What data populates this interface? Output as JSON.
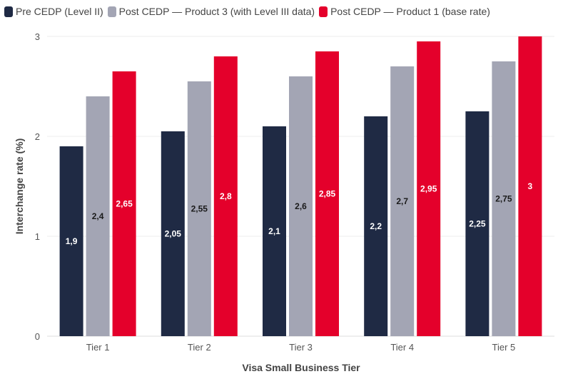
{
  "chart_data": {
    "type": "bar",
    "categories": [
      "Tier 1",
      "Tier 2",
      "Tier 3",
      "Tier 4",
      "Tier 5"
    ],
    "series": [
      {
        "name": "Pre CEDP (Level II)",
        "color": "#1f2a44",
        "label_color": "#ffffff",
        "values": [
          1.9,
          2.05,
          2.1,
          2.2,
          2.25
        ],
        "labels": [
          "1,9",
          "2,05",
          "2,1",
          "2,2",
          "2,25"
        ]
      },
      {
        "name": "Post CEDP — Product 3 (with Level III data)",
        "color": "#a3a5b4",
        "label_color": "#1a1a1a",
        "values": [
          2.4,
          2.55,
          2.6,
          2.7,
          2.75
        ],
        "labels": [
          "2,4",
          "2,55",
          "2,6",
          "2,7",
          "2,75"
        ]
      },
      {
        "name": "Post CEDP — Product 1 (base rate)",
        "color": "#e4002b",
        "label_color": "#ffffff",
        "values": [
          2.65,
          2.8,
          2.85,
          2.95,
          3
        ],
        "labels": [
          "2,65",
          "2,8",
          "2,85",
          "2,95",
          "3"
        ]
      }
    ],
    "xlabel": "Visa Small Business Tier",
    "ylabel": "Interchange rate (%)",
    "ylim": [
      0,
      3
    ],
    "yticks": [
      "0",
      "1",
      "2",
      "3"
    ],
    "grid": true,
    "legend_position": "top-left"
  }
}
